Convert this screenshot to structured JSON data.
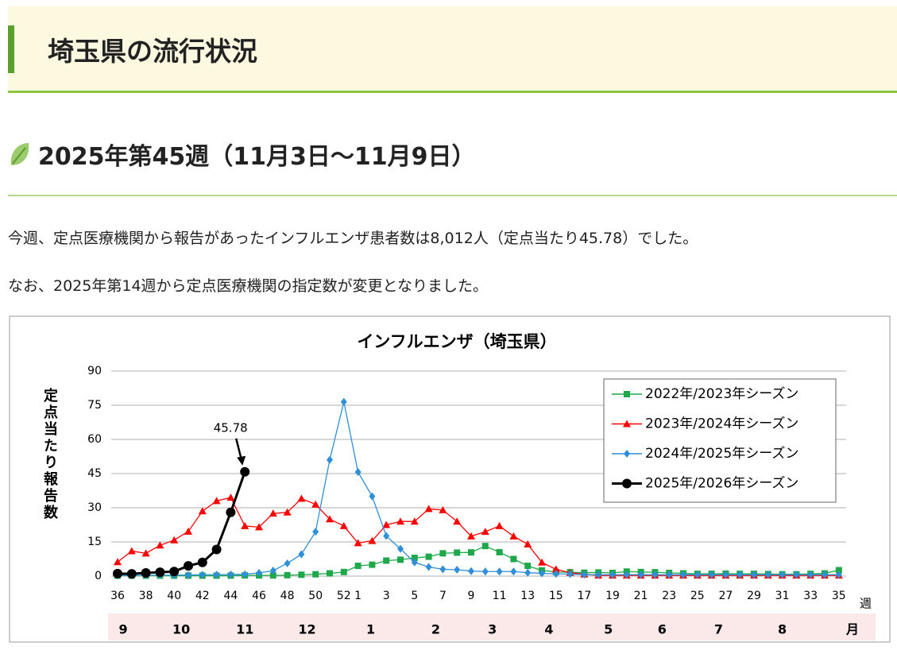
{
  "header": {
    "title": "埼玉県の流行状況"
  },
  "section": {
    "heading": "2025年第45週（11月3日～11月9日）",
    "paragraphs": [
      "今週、定点医療機関から報告があったインフルエンザ患者数は8,012人（定点当たり45.78）でした。",
      "なお、2025年第14週から定点医療機関の指定数が変更となりました。"
    ]
  },
  "chart_data": {
    "type": "line",
    "title": "インフルエンザ（埼玉県）",
    "y_label": "定点当たり報告数",
    "x_unit": "週",
    "months": [
      "9",
      "10",
      "11",
      "12",
      "1",
      "2",
      "3",
      "4",
      "5",
      "6",
      "7",
      "8"
    ],
    "month_unit": "月",
    "categories": [
      "36",
      null,
      "38",
      null,
      "40",
      null,
      "42",
      null,
      "44",
      null,
      "46",
      null,
      "48",
      null,
      "50",
      null,
      "52",
      "1",
      null,
      "3",
      null,
      "5",
      null,
      "7",
      null,
      "9",
      null,
      "11",
      null,
      "13",
      null,
      "15",
      null,
      "17",
      null,
      "19",
      null,
      "21",
      null,
      "23",
      null,
      "25",
      null,
      "27",
      null,
      "29",
      null,
      "31",
      null,
      "33",
      null,
      "35"
    ],
    "ylim": [
      0,
      90
    ],
    "yticks": [
      0,
      15,
      30,
      45,
      60,
      75,
      90
    ],
    "grid": true,
    "legend": "upper right",
    "annotation": "45.78",
    "series": [
      {
        "name": "2022年/2023年シーズン",
        "color": "#1fa84a",
        "marker": "square",
        "values": [
          0.2,
          0.2,
          0.2,
          0.2,
          0.2,
          0.2,
          0.2,
          0.2,
          0.2,
          0.3,
          0.3,
          0.3,
          0.4,
          0.6,
          0.8,
          1.2,
          1.8,
          4.5,
          5.0,
          6.8,
          7.2,
          8.0,
          8.5,
          10.0,
          10.3,
          10.4,
          13.2,
          10.5,
          7.5,
          4.5,
          2.5,
          1.8,
          1.7,
          1.5,
          1.6,
          1.4,
          2.0,
          1.8,
          1.7,
          1.4,
          1.2,
          1.0,
          1.0,
          1.1,
          1.0,
          1.0,
          0.9,
          0.8,
          0.8,
          1.0,
          1.2,
          2.6
        ]
      },
      {
        "name": "2023年/2024年シーズン",
        "color": "#ff0000",
        "marker": "triangle",
        "values": [
          6.2,
          11,
          10,
          13.5,
          15.8,
          19.6,
          28.5,
          33,
          34.5,
          22,
          21.5,
          27.5,
          28,
          34,
          31.5,
          25,
          22,
          14.5,
          15.5,
          22.5,
          24,
          24,
          29.5,
          29,
          24,
          17.5,
          19.5,
          22,
          17.5,
          14,
          6,
          3,
          1.5,
          0.8,
          0.3,
          0.3,
          0.3,
          0.3,
          0.3,
          0.3,
          0.3,
          0.3,
          0.3,
          0.3,
          0.3,
          0.3,
          0.3,
          0.3,
          0.3,
          0.3,
          0.3,
          0.3
        ]
      },
      {
        "name": "2024年/2025年シーズン",
        "color": "#2f8fd8",
        "marker": "diamond",
        "values": [
          0.3,
          0.3,
          0.3,
          0.4,
          0.4,
          0.5,
          0.6,
          0.6,
          0.7,
          0.8,
          1.4,
          2.4,
          5.6,
          9.6,
          19.5,
          51,
          76.5,
          45.7,
          35,
          17.6,
          12,
          6,
          4,
          3,
          2.8,
          2.2,
          2,
          2,
          2,
          1.5,
          1.2,
          1.0,
          0.9,
          0.6,
          0.6,
          0.6,
          0.6,
          0.6,
          0.6,
          0.6,
          0.6,
          0.6,
          0.6,
          0.6,
          0.6,
          0.6,
          0.6,
          0.6,
          0.6,
          0.6,
          0.6,
          0.6
        ]
      },
      {
        "name": "2025年/2026年シーズン",
        "color": "#000000",
        "marker": "circle",
        "values": [
          1.1,
          1.0,
          1.4,
          1.7,
          2.0,
          4.5,
          6.0,
          11.7,
          28,
          45.78,
          null,
          null,
          null,
          null,
          null,
          null,
          null,
          null,
          null,
          null,
          null,
          null,
          null,
          null,
          null,
          null,
          null,
          null,
          null,
          null,
          null,
          null,
          null,
          null,
          null,
          null,
          null,
          null,
          null,
          null,
          null,
          null,
          null,
          null,
          null,
          null,
          null,
          null,
          null,
          null,
          null,
          null
        ]
      }
    ]
  }
}
